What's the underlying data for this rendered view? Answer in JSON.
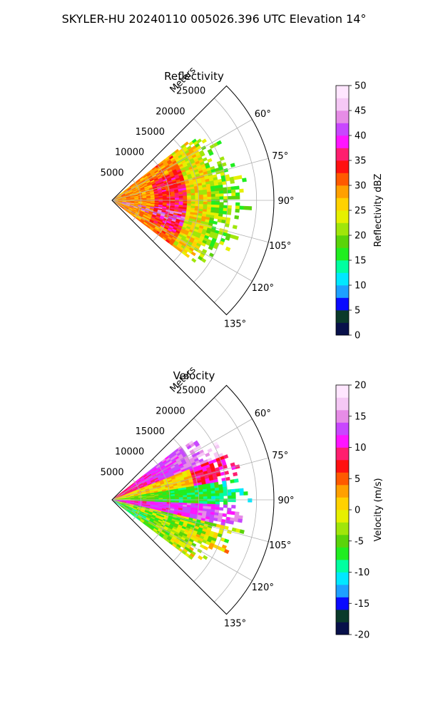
{
  "title": "SKYLER-HU  20240110  005026.396 UTC Elevation 14°",
  "chart_data": [
    {
      "type": "heatmap",
      "projection": "polar-sector",
      "title": "Reflectivity",
      "range_label": "Meters",
      "range_ticks": [
        5000,
        10000,
        15000,
        20000,
        25000
      ],
      "range_max": 28000,
      "azimuth_range_deg": [
        45,
        135
      ],
      "azimuth_ticks": [
        "60°",
        "75°",
        "90°",
        "105°",
        "120°",
        "135°"
      ],
      "azimuth_tick_values": [
        60,
        75,
        90,
        105,
        120,
        135
      ],
      "colorbar": {
        "label": "Reflectivity dBZ",
        "min": 0,
        "max": 50,
        "ticks": [
          0,
          5,
          10,
          15,
          20,
          25,
          30,
          35,
          40,
          45,
          50
        ],
        "colors": [
          "#08104a",
          "#0a3a2a",
          "#0a0aff",
          "#1ea0ff",
          "#00e8ff",
          "#00ffa0",
          "#20ee20",
          "#5ad40a",
          "#a0e60a",
          "#e6f000",
          "#ffd200",
          "#ffa000",
          "#ff5a00",
          "#ff1010",
          "#ff1e6e",
          "#ff14ff",
          "#c846ff",
          "#e68ce6",
          "#f5c8f5",
          "#ffe6ff"
        ]
      },
      "echo_extent_m": 23000,
      "echo_azimuth_deg": [
        52,
        127
      ]
    },
    {
      "type": "heatmap",
      "projection": "polar-sector",
      "title": "Velocity",
      "range_label": "Meters",
      "range_ticks": [
        5000,
        10000,
        15000,
        20000,
        25000
      ],
      "range_max": 28000,
      "azimuth_range_deg": [
        45,
        135
      ],
      "azimuth_ticks": [
        "60°",
        "75°",
        "90°",
        "105°",
        "120°",
        "135°"
      ],
      "azimuth_tick_values": [
        60,
        75,
        90,
        105,
        120,
        135
      ],
      "colorbar": {
        "label": "Velocity (m/s)",
        "min": -20,
        "max": 20,
        "ticks": [
          -20,
          -15,
          -10,
          -5,
          0,
          5,
          10,
          15,
          20
        ],
        "colors": [
          "#08104a",
          "#0a3a2a",
          "#0a0aff",
          "#1ea0ff",
          "#00e8ff",
          "#00ffa0",
          "#20ee20",
          "#5ad40a",
          "#a0e60a",
          "#e6f000",
          "#ffd200",
          "#ffa000",
          "#ff5a00",
          "#ff1010",
          "#ff1e6e",
          "#ff14ff",
          "#c846ff",
          "#e68ce6",
          "#f5c8f5",
          "#ffe6ff"
        ]
      },
      "echo_extent_m": 23000,
      "echo_azimuth_deg": [
        52,
        127
      ]
    }
  ]
}
